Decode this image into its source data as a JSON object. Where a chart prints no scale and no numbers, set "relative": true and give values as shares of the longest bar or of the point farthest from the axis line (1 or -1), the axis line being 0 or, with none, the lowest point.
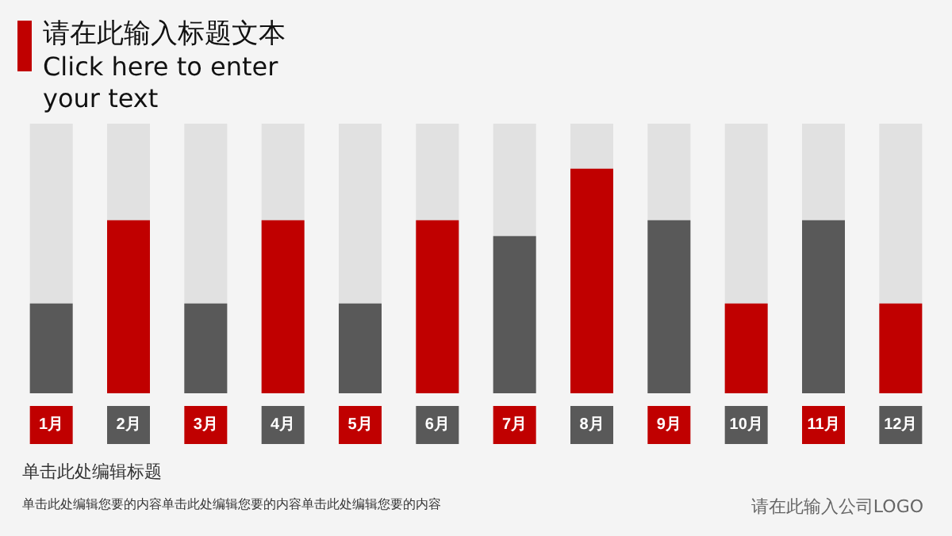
{
  "chart_data": {
    "type": "bar",
    "title": "请在此输入标题文本",
    "subtitle": "Click here to enter your text",
    "relative": true,
    "categories": [
      "1月",
      "2月",
      "3月",
      "4月",
      "5月",
      "6月",
      "7月",
      "8月",
      "9月",
      "10月",
      "11月",
      "12月"
    ],
    "colors": [
      "#595959",
      "#c00000",
      "#595959",
      "#c00000",
      "#595959",
      "#c00000",
      "#595959",
      "#c00000",
      "#595959",
      "#c00000",
      "#595959",
      "#c00000"
    ],
    "values": [
      0.4,
      0.77,
      0.4,
      0.77,
      0.4,
      0.77,
      0.7,
      1,
      0.77,
      0.4,
      0.77,
      0.4
    ],
    "annotations": [
      "单击此处编辑标题",
      "单击此处编辑您要的内容单击此处编辑您要的内容单击此处编辑您要的内容",
      "请在此输入公司LOGO"
    ],
    "grid": false
  }
}
